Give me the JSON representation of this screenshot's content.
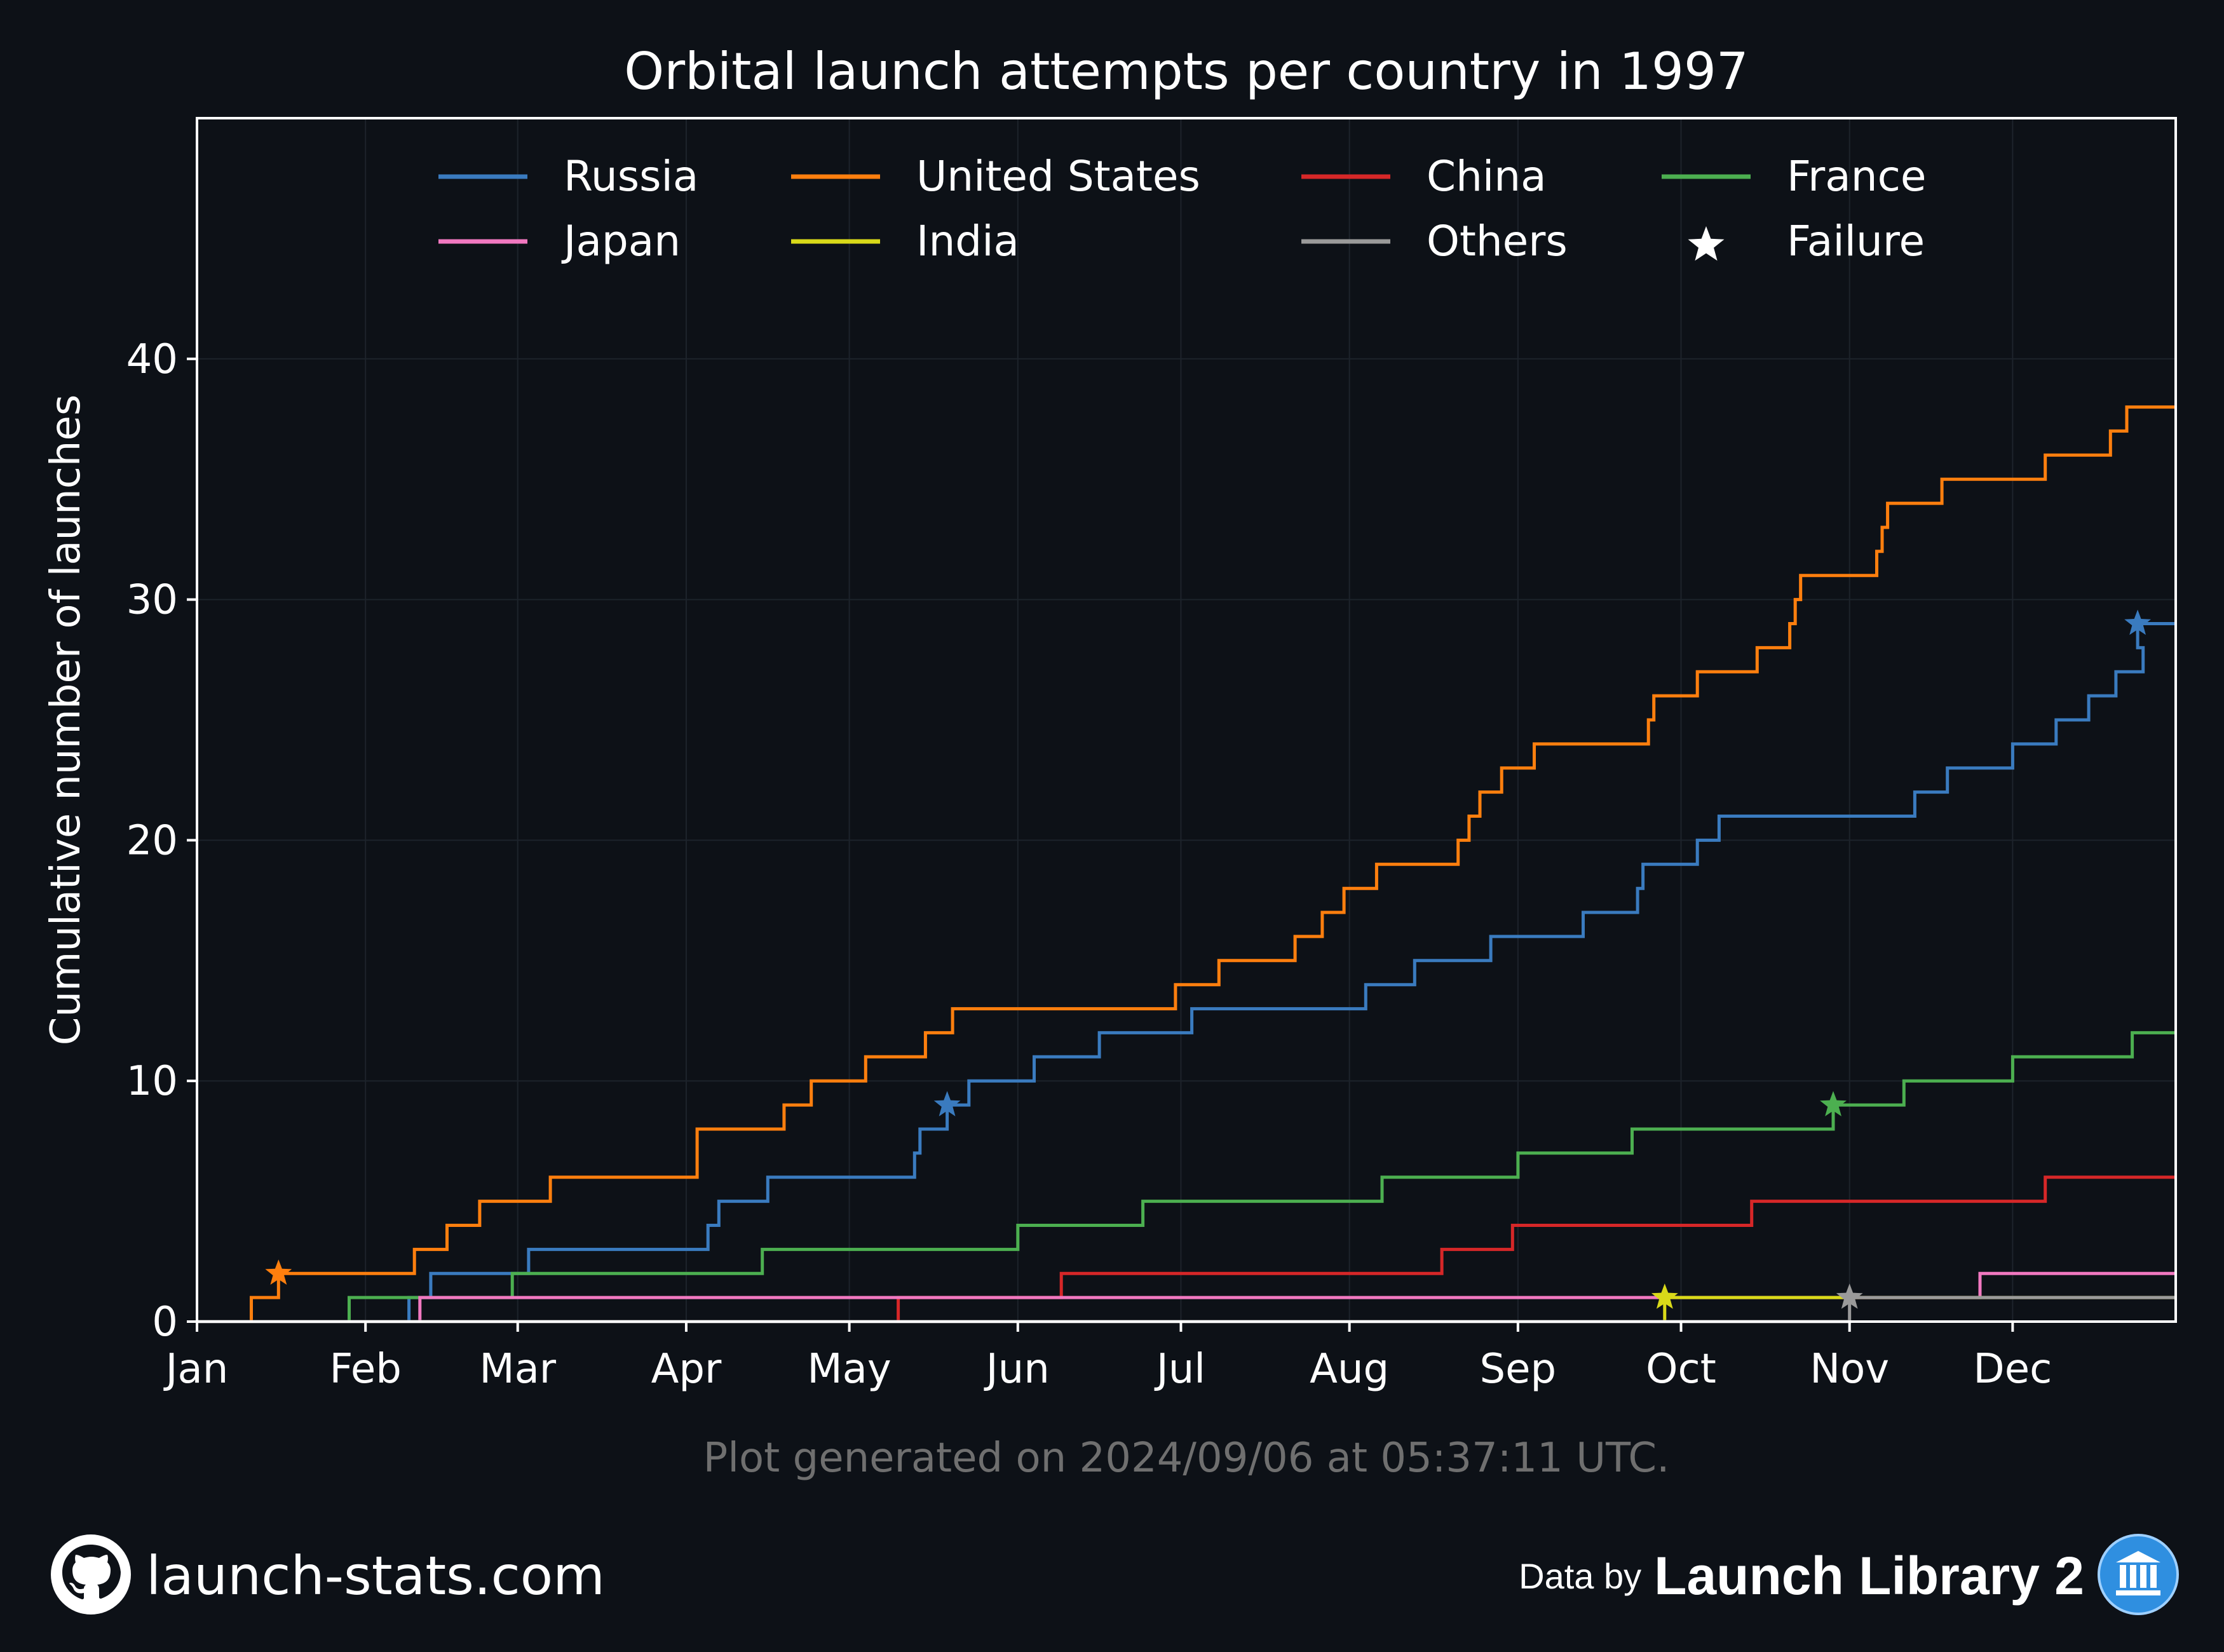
{
  "chart_data": {
    "type": "line",
    "title": "Orbital launch attempts per country in 1997",
    "xlabel": "",
    "ylabel": "Cumulative number of launches",
    "x_unit": "day of year 1997",
    "x_tick_labels": [
      "Jan",
      "Feb",
      "Mar",
      "Apr",
      "May",
      "Jun",
      "Jul",
      "Aug",
      "Sep",
      "Oct",
      "Nov",
      "Dec"
    ],
    "x_tick_days": [
      0,
      31,
      59,
      90,
      120,
      151,
      181,
      212,
      243,
      273,
      304,
      334
    ],
    "xlim": [
      0,
      364
    ],
    "ylim": [
      0,
      50
    ],
    "y_ticks": [
      0,
      10,
      20,
      30,
      40
    ],
    "grid": true,
    "legend_placement": "top",
    "legend_failure_label": "Failure",
    "series": [
      {
        "name": "Russia",
        "color": "#3a7bbf",
        "steps": [
          [
            39,
            1
          ],
          [
            43,
            2
          ],
          [
            61,
            3
          ],
          [
            94,
            4
          ],
          [
            96,
            5
          ],
          [
            105,
            6
          ],
          [
            132,
            7
          ],
          [
            133,
            8
          ],
          [
            138,
            9
          ],
          [
            142,
            10
          ],
          [
            154,
            11
          ],
          [
            166,
            12
          ],
          [
            183,
            13
          ],
          [
            215,
            14
          ],
          [
            224,
            15
          ],
          [
            238,
            16
          ],
          [
            255,
            17
          ],
          [
            265,
            18
          ],
          [
            266,
            19
          ],
          [
            276,
            20
          ],
          [
            280,
            21
          ],
          [
            316,
            22
          ],
          [
            322,
            23
          ],
          [
            334,
            24
          ],
          [
            342,
            25
          ],
          [
            348,
            26
          ],
          [
            353,
            27
          ],
          [
            358,
            28
          ],
          [
            357,
            29
          ]
        ],
        "failures": [
          [
            138,
            9
          ],
          [
            357,
            29
          ]
        ]
      },
      {
        "name": "United States",
        "color": "#ff7f0e",
        "steps": [
          [
            10,
            1
          ],
          [
            15,
            2
          ],
          [
            40,
            3
          ],
          [
            46,
            4
          ],
          [
            52,
            5
          ],
          [
            65,
            6
          ],
          [
            92,
            8
          ],
          [
            108,
            9
          ],
          [
            113,
            10
          ],
          [
            123,
            11
          ],
          [
            134,
            12
          ],
          [
            139,
            13
          ],
          [
            180,
            14
          ],
          [
            188,
            15
          ],
          [
            202,
            16
          ],
          [
            207,
            17
          ],
          [
            211,
            18
          ],
          [
            217,
            19
          ],
          [
            232,
            20
          ],
          [
            234,
            21
          ],
          [
            236,
            22
          ],
          [
            240,
            23
          ],
          [
            246,
            24
          ],
          [
            267,
            25
          ],
          [
            268,
            26
          ],
          [
            276,
            27
          ],
          [
            287,
            28
          ],
          [
            293,
            29
          ],
          [
            294,
            30
          ],
          [
            295,
            31
          ],
          [
            309,
            32
          ],
          [
            310,
            33
          ],
          [
            311,
            34
          ],
          [
            321,
            35
          ],
          [
            340,
            36
          ],
          [
            352,
            37
          ],
          [
            355,
            38
          ]
        ],
        "failures": [
          [
            15,
            2
          ]
        ]
      },
      {
        "name": "China",
        "color": "#d62728",
        "steps": [
          [
            129,
            1
          ],
          [
            159,
            2
          ],
          [
            229,
            3
          ],
          [
            242,
            4
          ],
          [
            286,
            5
          ],
          [
            340,
            6
          ]
        ],
        "failures": []
      },
      {
        "name": "France",
        "color": "#4caf50",
        "steps": [
          [
            28,
            1
          ],
          [
            58,
            2
          ],
          [
            104,
            3
          ],
          [
            151,
            4
          ],
          [
            174,
            5
          ],
          [
            218,
            6
          ],
          [
            243,
            7
          ],
          [
            264,
            8
          ],
          [
            301,
            9
          ],
          [
            314,
            10
          ],
          [
            334,
            11
          ],
          [
            356,
            12
          ]
        ],
        "failures": [
          [
            301,
            9
          ]
        ]
      },
      {
        "name": "Japan",
        "color": "#f178c0",
        "steps": [
          [
            41,
            1
          ],
          [
            328,
            2
          ]
        ],
        "failures": []
      },
      {
        "name": "India",
        "color": "#d9d919",
        "steps": [
          [
            270,
            1
          ]
        ],
        "failures": [
          [
            270,
            1
          ]
        ]
      },
      {
        "name": "Others",
        "color": "#9a9a9a",
        "steps": [
          [
            304,
            1
          ]
        ],
        "failures": [
          [
            304,
            1
          ]
        ]
      }
    ]
  },
  "footer": {
    "generated_text": "Plot generated on 2024/09/06 at 05:37:11 UTC.",
    "site": "launch-stats.com",
    "data_by": "Data by",
    "library": "Launch Library 2"
  },
  "icons": {
    "left": "github-icon",
    "right": "launch-library-icon"
  }
}
